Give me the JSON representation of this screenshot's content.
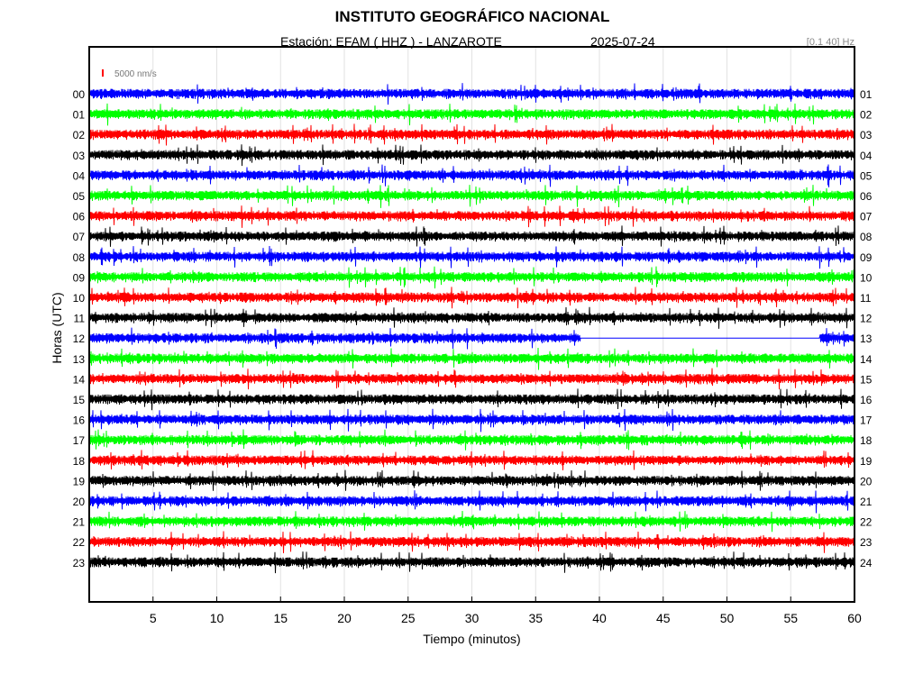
{
  "header": {
    "title": "INSTITUTO GEOGRÁFICO NACIONAL",
    "station": "Estación:  EFAM ( HHZ ) - LANZAROTE",
    "date": "2025-07-24",
    "filter": "[0.1 40] Hz"
  },
  "chart_data": {
    "type": "line",
    "title": "INSTITUTO GEOGRÁFICO NACIONAL",
    "xlabel": "Tiempo (minutos)",
    "ylabel": "Horas (UTC)",
    "xlim": [
      0,
      60
    ],
    "x_ticks": [
      "5",
      "10",
      "15",
      "20",
      "25",
      "30",
      "35",
      "40",
      "45",
      "50",
      "55",
      "60"
    ],
    "left_labels": [
      "00",
      "01",
      "02",
      "03",
      "04",
      "05",
      "06",
      "07",
      "08",
      "09",
      "10",
      "11",
      "12",
      "13",
      "14",
      "15",
      "16",
      "17",
      "18",
      "19",
      "20",
      "21",
      "22",
      "23"
    ],
    "right_labels": [
      "01",
      "02",
      "03",
      "04",
      "05",
      "06",
      "07",
      "08",
      "09",
      "10",
      "11",
      "12",
      "13",
      "14",
      "15",
      "16",
      "17",
      "18",
      "19",
      "20",
      "21",
      "22",
      "23",
      "24"
    ],
    "trace_colors": [
      "#0000ff",
      "#00ff00",
      "#ff0000",
      "#000000"
    ],
    "scale": {
      "label": "5000 nm/s",
      "color": "#ff0000"
    },
    "gaps": [
      {
        "hour": 12,
        "from_minute": 38.5,
        "to_minute": 57.3
      }
    ],
    "grid": true
  }
}
